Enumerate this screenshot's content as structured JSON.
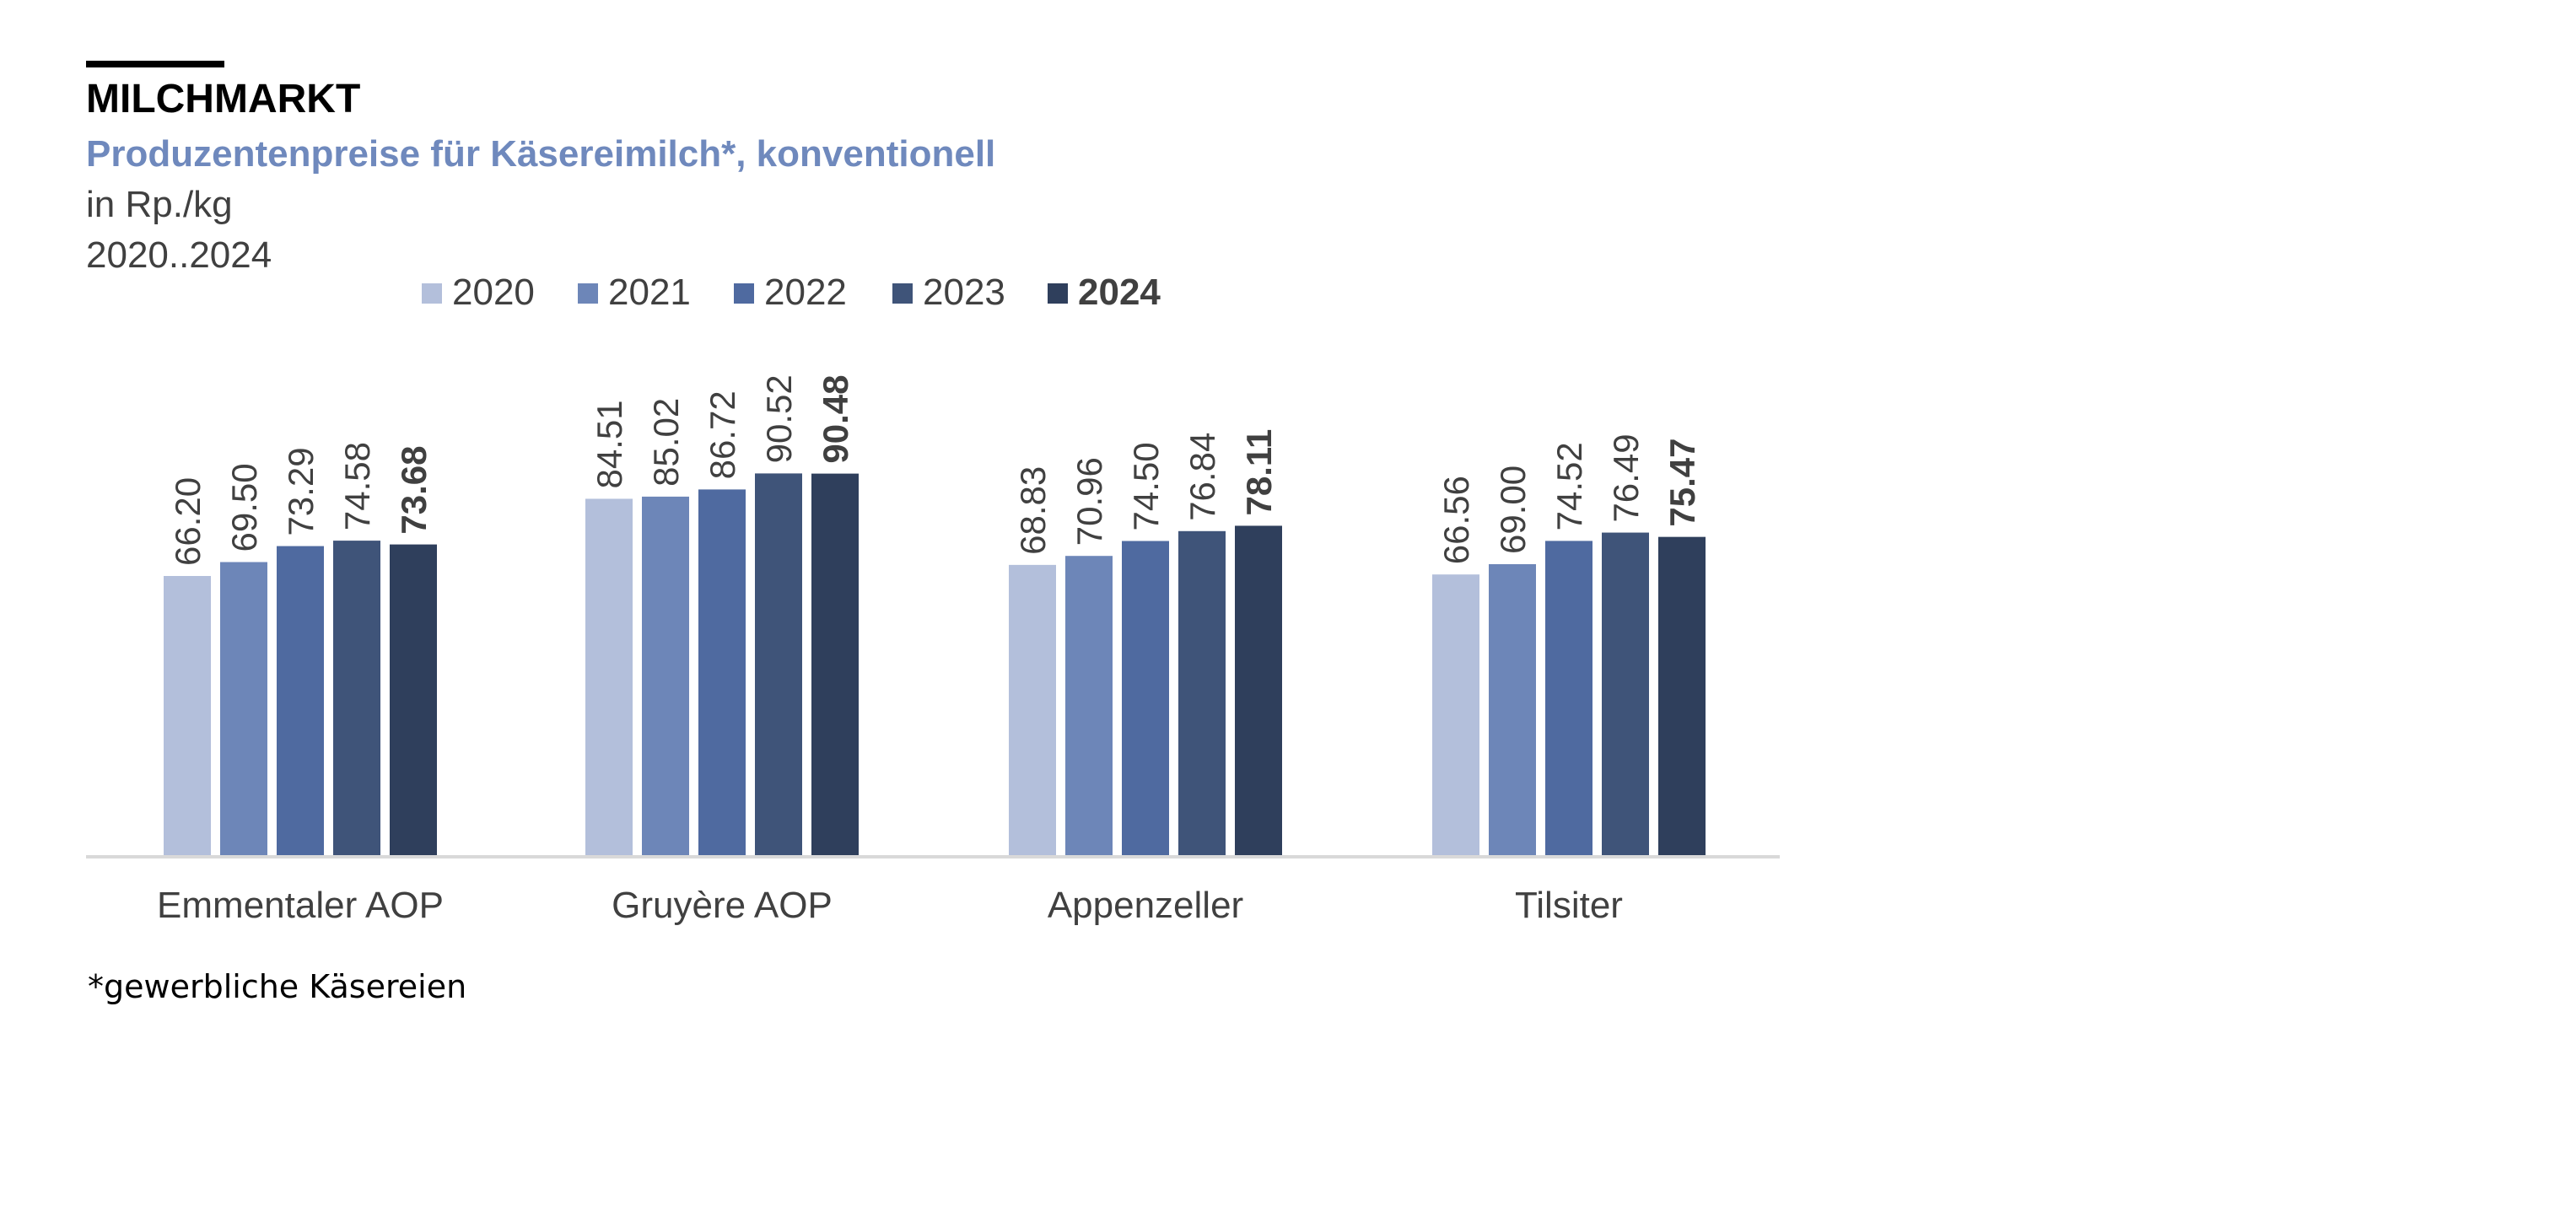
{
  "header": {
    "title": "MILCHMARKT",
    "subtitle": "Produzentenpreise für Käsereimilch*, konventionell",
    "unit": "in Rp./kg",
    "period": "2020..2024"
  },
  "footnote": "*gewerbliche Käsereien",
  "colors": {
    "subtitle": "#6f89bd",
    "2020": "#b3bfdb",
    "2021": "#6d86b8",
    "2022": "#4f6aa0",
    "2023": "#3f5479",
    "2024": "#2f3f5c",
    "axis": "#d9d9d9",
    "text": "#404040"
  },
  "chart_data": {
    "type": "bar",
    "categories": [
      "Emmentaler AOP",
      "Gruyère AOP",
      "Appenzeller",
      "Tilsiter"
    ],
    "series": [
      {
        "name": "2020",
        "values": [
          66.2,
          84.51,
          68.83,
          66.56
        ],
        "labels": [
          "66.20",
          "84.51",
          "68.83",
          "66.56"
        ]
      },
      {
        "name": "2021",
        "values": [
          69.5,
          85.02,
          70.96,
          69.0
        ],
        "labels": [
          "69.50",
          "85.02",
          "70.96",
          "69.00"
        ]
      },
      {
        "name": "2022",
        "values": [
          73.29,
          86.72,
          74.5,
          74.52
        ],
        "labels": [
          "73.29",
          "86.72",
          "74.50",
          "74.52"
        ]
      },
      {
        "name": "2023",
        "values": [
          74.58,
          90.52,
          76.84,
          76.49
        ],
        "labels": [
          "74.58",
          "90.52",
          "76.84",
          "76.49"
        ]
      },
      {
        "name": "2024",
        "values": [
          73.68,
          90.48,
          78.11,
          75.47
        ],
        "labels": [
          "73.68",
          "90.48",
          "78.11",
          "75.47"
        ],
        "emphasis": true
      }
    ],
    "ylim": [
      0,
      90.52
    ],
    "grid": false,
    "legend": "top",
    "data_labels": "rotated-vertical"
  }
}
